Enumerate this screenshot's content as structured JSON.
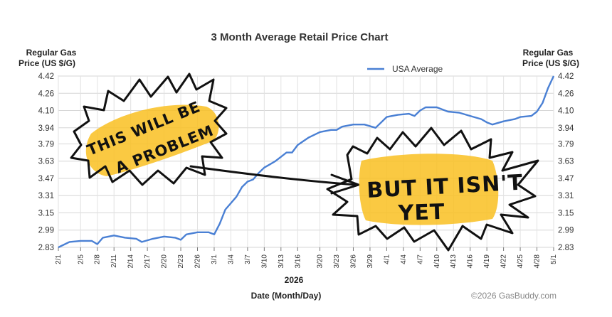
{
  "chart_data": {
    "type": "line",
    "title": "3 Month Average Retail Price Chart",
    "ylabel_left": [
      "Regular Gas",
      "Price (US $/G)"
    ],
    "ylabel_right": [
      "Regular Gas",
      "Price (US $/G)"
    ],
    "xlabel_year": "2026",
    "xlabel": "Date (Month/Day)",
    "yticks": [
      "2.83",
      "2.99",
      "3.15",
      "3.31",
      "3.47",
      "3.63",
      "3.79",
      "3.94",
      "4.10",
      "4.26",
      "4.42"
    ],
    "ylim": [
      2.83,
      4.42
    ],
    "xticks": [
      "2/1",
      "2/5",
      "2/8",
      "2/11",
      "2/14",
      "2/17",
      "2/20",
      "2/23",
      "2/26",
      "3/1",
      "3/4",
      "3/7",
      "3/10",
      "3/13",
      "3/16",
      "3/20",
      "3/23",
      "3/26",
      "3/29",
      "4/1",
      "4/4",
      "4/7",
      "4/10",
      "4/13",
      "4/16",
      "4/19",
      "4/22",
      "4/25",
      "4/28",
      "5/1"
    ],
    "legend": "USA Average",
    "legend_position": "top-right",
    "grid": true,
    "series": [
      {
        "name": "USA Average",
        "color": "#4a80d4",
        "points": [
          [
            "2/1",
            2.83
          ],
          [
            "2/3",
            2.88
          ],
          [
            "2/5",
            2.89
          ],
          [
            "2/7",
            2.89
          ],
          [
            "2/8",
            2.86
          ],
          [
            "2/9",
            2.92
          ],
          [
            "2/11",
            2.94
          ],
          [
            "2/13",
            2.92
          ],
          [
            "2/15",
            2.91
          ],
          [
            "2/16",
            2.88
          ],
          [
            "2/18",
            2.91
          ],
          [
            "2/20",
            2.93
          ],
          [
            "2/22",
            2.92
          ],
          [
            "2/23",
            2.9
          ],
          [
            "2/24",
            2.95
          ],
          [
            "2/26",
            2.97
          ],
          [
            "2/28",
            2.97
          ],
          [
            "3/1",
            2.95
          ],
          [
            "3/2",
            3.05
          ],
          [
            "3/3",
            3.18
          ],
          [
            "3/4",
            3.24
          ],
          [
            "3/5",
            3.3
          ],
          [
            "3/6",
            3.39
          ],
          [
            "3/7",
            3.44
          ],
          [
            "3/8",
            3.46
          ],
          [
            "3/9",
            3.52
          ],
          [
            "3/10",
            3.57
          ],
          [
            "3/11",
            3.6
          ],
          [
            "3/12",
            3.63
          ],
          [
            "3/13",
            3.67
          ],
          [
            "3/14",
            3.71
          ],
          [
            "3/15",
            3.71
          ],
          [
            "3/16",
            3.78
          ],
          [
            "3/18",
            3.85
          ],
          [
            "3/20",
            3.9
          ],
          [
            "3/22",
            3.92
          ],
          [
            "3/23",
            3.92
          ],
          [
            "3/24",
            3.95
          ],
          [
            "3/26",
            3.97
          ],
          [
            "3/28",
            3.97
          ],
          [
            "3/30",
            3.94
          ],
          [
            "4/1",
            4.04
          ],
          [
            "4/3",
            4.06
          ],
          [
            "4/5",
            4.07
          ],
          [
            "4/6",
            4.05
          ],
          [
            "4/7",
            4.1
          ],
          [
            "4/8",
            4.13
          ],
          [
            "4/10",
            4.13
          ],
          [
            "4/12",
            4.09
          ],
          [
            "4/14",
            4.08
          ],
          [
            "4/16",
            4.05
          ],
          [
            "4/18",
            4.02
          ],
          [
            "4/19",
            3.99
          ],
          [
            "4/20",
            3.97
          ],
          [
            "4/22",
            4.0
          ],
          [
            "4/24",
            4.02
          ],
          [
            "4/25",
            4.04
          ],
          [
            "4/27",
            4.05
          ],
          [
            "4/28",
            4.09
          ],
          [
            "4/29",
            4.17
          ],
          [
            "4/30",
            4.31
          ],
          [
            "5/1",
            4.42
          ]
        ]
      }
    ],
    "annotations": [
      {
        "lines": [
          "THIS WILL BE",
          "A PROBLEM"
        ]
      },
      {
        "lines": [
          "BUT IT ISN'T",
          "YET"
        ]
      }
    ]
  },
  "credit": "©2026 GasBuddy.com"
}
